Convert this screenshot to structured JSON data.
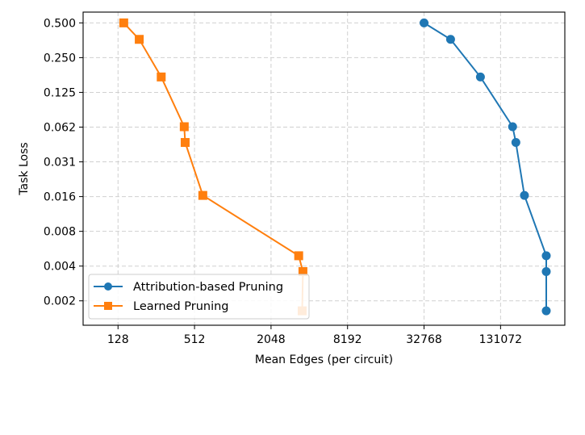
{
  "chart_data": {
    "type": "line",
    "title": "",
    "xlabel": "Mean Edges (per circuit)",
    "ylabel": "Task Loss",
    "x_scale": "log2",
    "y_scale": "log2",
    "xlim": [
      68,
      420000
    ],
    "ylim": [
      0.0012,
      0.62
    ],
    "x_ticks": [
      128,
      512,
      2048,
      8192,
      32768,
      131072
    ],
    "x_tick_labels": [
      "128",
      "512",
      "2048",
      "8192",
      "32768",
      "131072"
    ],
    "y_ticks": [
      0.5,
      0.25,
      0.125,
      0.0625,
      0.03125,
      0.015625,
      0.0078125,
      0.00390625,
      0.001953125
    ],
    "y_tick_labels": [
      "0.500",
      "0.250",
      "0.125",
      "0.062",
      "0.031",
      "0.016",
      "0.008",
      "0.004",
      "0.002"
    ],
    "grid": true,
    "legend_position": "lower-left",
    "series": [
      {
        "name": "Attribution-based Pruning",
        "color": "#1f77b4",
        "marker": "circle",
        "x": [
          32768,
          53000,
          91000,
          163000,
          173000,
          202000,
          300000,
          300000,
          300000
        ],
        "y": [
          0.5,
          0.36,
          0.17,
          0.063,
          0.046,
          0.016,
          0.0048,
          0.0035,
          0.0016
        ]
      },
      {
        "name": "Learned Pruning",
        "color": "#ff7f0e",
        "marker": "square",
        "x": [
          142,
          188,
          280,
          425,
          432,
          595,
          3380,
          3650,
          3600
        ],
        "y": [
          0.5,
          0.36,
          0.17,
          0.063,
          0.046,
          0.016,
          0.0048,
          0.0035,
          0.0016
        ]
      }
    ]
  }
}
